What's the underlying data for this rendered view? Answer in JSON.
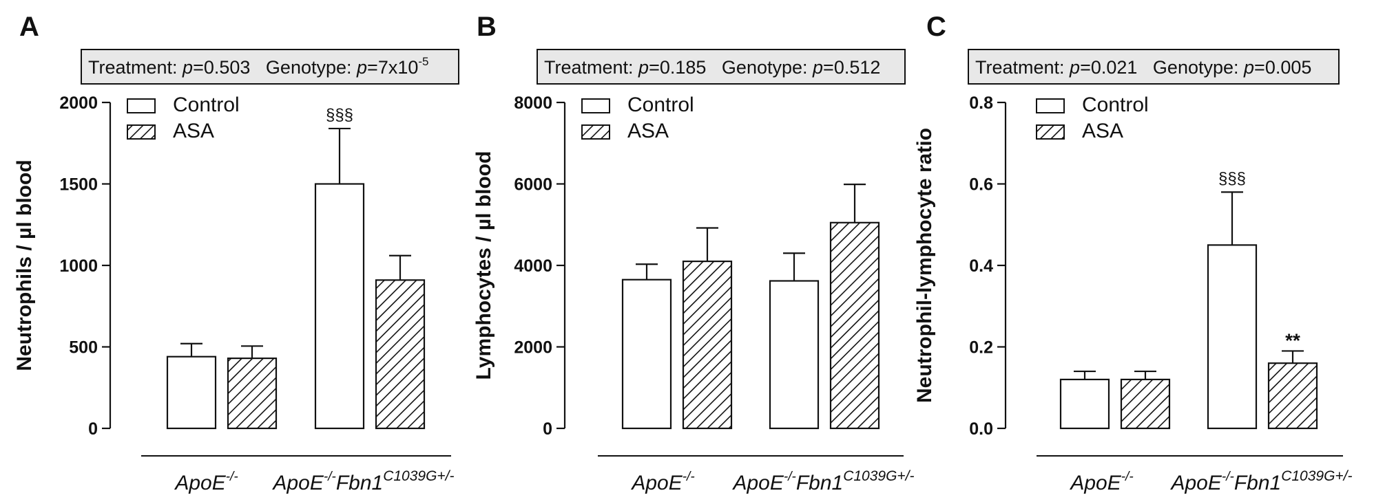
{
  "group_labels": [
    {
      "base": "ApoE",
      "sup": "-/-",
      "base2": "",
      "sup2": ""
    },
    {
      "base": "ApoE",
      "sup": "-/-",
      "base2": "Fbn1",
      "sup2": "C1039G+/-"
    }
  ],
  "legend": [
    {
      "label": "Control",
      "pattern": "open"
    },
    {
      "label": "ASA",
      "pattern": "hatched"
    }
  ],
  "chart_data": [
    {
      "panel": "A",
      "type": "bar",
      "ylabel": "Neutrophils / µl blood",
      "ylim": [
        0,
        2000
      ],
      "ticks": [
        0,
        500,
        1000,
        1500,
        2000
      ],
      "tick_labels": [
        "0",
        "500",
        "1000",
        "1500",
        "2000"
      ],
      "categories": [
        "ApoE-/-",
        "ApoE-/-Fbn1C1039G+/-"
      ],
      "stats": {
        "treatment_label": "Treatment: ",
        "treatment_p": "=0.503",
        "genotype_label": "Genotype: ",
        "genotype_p": "=7x10",
        "genotype_exp": "-5"
      },
      "series": [
        {
          "name": "Control",
          "values": [
            440,
            1500
          ],
          "errors": [
            80,
            340
          ],
          "annotations": [
            "",
            "§§§"
          ]
        },
        {
          "name": "ASA",
          "values": [
            430,
            910
          ],
          "errors": [
            75,
            150
          ],
          "annotations": [
            "",
            ""
          ]
        }
      ]
    },
    {
      "panel": "B",
      "type": "bar",
      "ylabel": "Lymphocytes / µl blood",
      "ylim": [
        0,
        8000
      ],
      "ticks": [
        0,
        2000,
        4000,
        6000,
        8000
      ],
      "tick_labels": [
        "0",
        "2000",
        "4000",
        "6000",
        "8000"
      ],
      "categories": [
        "ApoE-/-",
        "ApoE-/-Fbn1C1039G+/-"
      ],
      "stats": {
        "treatment_label": "Treatment: ",
        "treatment_p": "=0.185",
        "genotype_label": "Genotype: ",
        "genotype_p": "=0.512",
        "genotype_exp": ""
      },
      "series": [
        {
          "name": "Control",
          "values": [
            3650,
            3620
          ],
          "errors": [
            380,
            680
          ],
          "annotations": [
            "",
            ""
          ]
        },
        {
          "name": "ASA",
          "values": [
            4100,
            5050
          ],
          "errors": [
            820,
            940
          ],
          "annotations": [
            "",
            ""
          ]
        }
      ]
    },
    {
      "panel": "C",
      "type": "bar",
      "ylabel": "Neutrophil-lymphocyte ratio",
      "ylim": [
        0,
        0.8
      ],
      "ticks": [
        0,
        0.2,
        0.4,
        0.6,
        0.8
      ],
      "tick_labels": [
        "0.0",
        "0.2",
        "0.4",
        "0.6",
        "0.8"
      ],
      "categories": [
        "ApoE-/-",
        "ApoE-/-Fbn1C1039G+/-"
      ],
      "stats": {
        "treatment_label": "Treatment: ",
        "treatment_p": "=0.021",
        "genotype_label": "Genotype: ",
        "genotype_p": "=0.005",
        "genotype_exp": ""
      },
      "series": [
        {
          "name": "Control",
          "values": [
            0.12,
            0.45
          ],
          "errors": [
            0.02,
            0.13
          ],
          "annotations": [
            "",
            "§§§"
          ]
        },
        {
          "name": "ASA",
          "values": [
            0.12,
            0.16
          ],
          "errors": [
            0.02,
            0.03
          ],
          "annotations": [
            "",
            "**"
          ]
        }
      ]
    }
  ],
  "colors": {
    "ink": "#111111",
    "box_fill": "#e8e8e8",
    "bar_fill": "#ffffff"
  },
  "p_symbol": "p"
}
